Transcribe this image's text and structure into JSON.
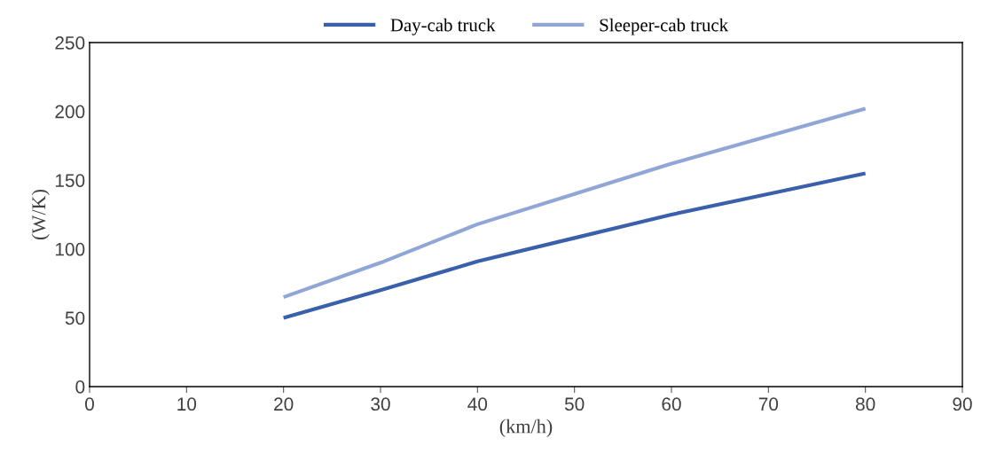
{
  "chart_data": {
    "type": "line",
    "xlabel": "(km/h)",
    "ylabel": "(W/K)",
    "x": [
      20,
      30,
      40,
      50,
      60,
      70,
      80
    ],
    "series": [
      {
        "name": "Day-cab truck",
        "color": "#3a5fab",
        "values": [
          50,
          70,
          91,
          108,
          125,
          140,
          155
        ]
      },
      {
        "name": "Sleeper-cab truck",
        "color": "#8fa6d6",
        "values": [
          65,
          90,
          118,
          140,
          162,
          182,
          202
        ]
      }
    ],
    "xlim": [
      0,
      90
    ],
    "xticks": [
      0,
      10,
      20,
      30,
      40,
      50,
      60,
      70,
      80,
      90
    ],
    "ylim": [
      0,
      250
    ],
    "yticks": [
      0,
      50,
      100,
      150,
      200,
      250
    ],
    "grid": false,
    "legend": "top",
    "marker": "none",
    "line_style": "solid"
  }
}
